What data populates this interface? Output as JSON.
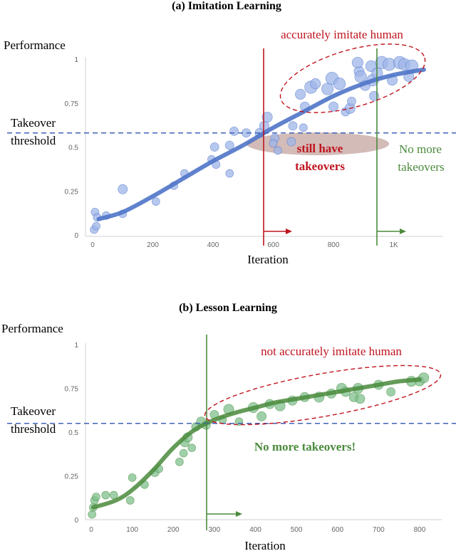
{
  "colors": {
    "blue": "#4f74c8",
    "blue_fill": "#9fb6e8",
    "blue_dash": "#3f62b6",
    "red": "#c0141e",
    "green": "#4a8a3c",
    "green_dark": "#3d7a31",
    "green_fill": "#7fc08e",
    "axis": "#d0d0d0",
    "tick": "#666666",
    "shade": "#c4a4a0"
  },
  "chart_data": [
    {
      "type": "scatter",
      "title": "(a) Imitation Learning",
      "ylabel": "Performance",
      "xlabel": "Iteration",
      "xlim": [
        0,
        1150
      ],
      "ylim": [
        0,
        1
      ],
      "x_ticks": [
        {
          "value": 0,
          "label": "0"
        },
        {
          "value": 200,
          "label": "200"
        },
        {
          "value": 400,
          "label": "400"
        },
        {
          "value": 600,
          "label": "600"
        },
        {
          "value": 800,
          "label": "800"
        },
        {
          "value": 1000,
          "label": "1K"
        }
      ],
      "y_ticks": [
        {
          "value": 0,
          "label": "0"
        },
        {
          "value": 0.25,
          "label": "0.25"
        },
        {
          "value": 0.5,
          "label": "0.5"
        },
        {
          "value": 0.75,
          "label": "0.75"
        },
        {
          "value": 1,
          "label": "1"
        }
      ],
      "threshold": {
        "value": 0.58,
        "label_line1": "Takeover",
        "label_line2": "threshold"
      },
      "vlines": [
        {
          "x": 555,
          "color": "red"
        },
        {
          "x": 925,
          "color": "green"
        }
      ],
      "annotations": {
        "top": "accurately imitate human",
        "middle_line1": "still have",
        "middle_line2": "takeovers",
        "right_line1": "No more",
        "right_line2": "takeovers"
      },
      "trend": {
        "x": [
          20,
          100,
          200,
          300,
          400,
          500,
          600,
          700,
          800,
          900,
          1000,
          1100
        ],
        "y": [
          0.09,
          0.13,
          0.22,
          0.32,
          0.42,
          0.51,
          0.61,
          0.7,
          0.79,
          0.86,
          0.91,
          0.94
        ]
      },
      "points": [
        {
          "x": 5,
          "y": 0.03,
          "s": 1
        },
        {
          "x": 12,
          "y": 0.05,
          "s": 1
        },
        {
          "x": 8,
          "y": 0.13,
          "s": 1
        },
        {
          "x": 15,
          "y": 0.1,
          "s": 1
        },
        {
          "x": 45,
          "y": 0.11,
          "s": 1
        },
        {
          "x": 100,
          "y": 0.12,
          "s": 1
        },
        {
          "x": 100,
          "y": 0.26,
          "s": 1.2
        },
        {
          "x": 210,
          "y": 0.19,
          "s": 1
        },
        {
          "x": 270,
          "y": 0.28,
          "s": 1
        },
        {
          "x": 305,
          "y": 0.35,
          "s": 1
        },
        {
          "x": 405,
          "y": 0.5,
          "s": 1.1
        },
        {
          "x": 395,
          "y": 0.43,
          "s": 1
        },
        {
          "x": 410,
          "y": 0.4,
          "s": 1
        },
        {
          "x": 455,
          "y": 0.35,
          "s": 1
        },
        {
          "x": 455,
          "y": 0.51,
          "s": 1.1
        },
        {
          "x": 470,
          "y": 0.59,
          "s": 1.1
        },
        {
          "x": 510,
          "y": 0.58,
          "s": 1.1
        },
        {
          "x": 555,
          "y": 0.58,
          "s": 1.2
        },
        {
          "x": 570,
          "y": 0.62,
          "s": 1.2
        },
        {
          "x": 580,
          "y": 0.67,
          "s": 1.3
        },
        {
          "x": 605,
          "y": 0.55,
          "s": 1.1
        },
        {
          "x": 600,
          "y": 0.52,
          "s": 1
        },
        {
          "x": 615,
          "y": 0.48,
          "s": 1
        },
        {
          "x": 660,
          "y": 0.53,
          "s": 1.1
        },
        {
          "x": 665,
          "y": 0.62,
          "s": 1.1
        },
        {
          "x": 700,
          "y": 0.61,
          "s": 1
        },
        {
          "x": 705,
          "y": 0.73,
          "s": 1.2
        },
        {
          "x": 690,
          "y": 0.8,
          "s": 1.3
        },
        {
          "x": 725,
          "y": 0.84,
          "s": 1.6
        },
        {
          "x": 740,
          "y": 0.86,
          "s": 1.3
        },
        {
          "x": 780,
          "y": 0.83,
          "s": 1.5
        },
        {
          "x": 795,
          "y": 0.89,
          "s": 1.6
        },
        {
          "x": 820,
          "y": 0.86,
          "s": 1.5
        },
        {
          "x": 800,
          "y": 0.73,
          "s": 1.2
        },
        {
          "x": 840,
          "y": 0.7,
          "s": 1.1
        },
        {
          "x": 855,
          "y": 0.72,
          "s": 1.3
        },
        {
          "x": 885,
          "y": 0.93,
          "s": 1.3
        },
        {
          "x": 890,
          "y": 0.9,
          "s": 1.5
        },
        {
          "x": 880,
          "y": 0.98,
          "s": 1.4
        },
        {
          "x": 905,
          "y": 0.85,
          "s": 1.3
        },
        {
          "x": 925,
          "y": 0.96,
          "s": 1.4
        },
        {
          "x": 930,
          "y": 0.88,
          "s": 1.5
        },
        {
          "x": 945,
          "y": 0.92,
          "s": 1.4
        },
        {
          "x": 960,
          "y": 0.98,
          "s": 1.6
        },
        {
          "x": 985,
          "y": 0.97,
          "s": 1.6
        },
        {
          "x": 995,
          "y": 0.88,
          "s": 1.3
        },
        {
          "x": 1020,
          "y": 0.98,
          "s": 1.6
        },
        {
          "x": 1035,
          "y": 0.97,
          "s": 1.5
        },
        {
          "x": 1050,
          "y": 0.9,
          "s": 1.3
        },
        {
          "x": 1060,
          "y": 0.96,
          "s": 1.6
        },
        {
          "x": 935,
          "y": 0.79,
          "s": 1.2
        },
        {
          "x": 860,
          "y": 0.76,
          "s": 1.1
        }
      ]
    },
    {
      "type": "scatter",
      "title": "(b) Lesson Learning",
      "ylabel": "Performance",
      "xlabel": "Iteration",
      "xlim": [
        0,
        840
      ],
      "ylim": [
        0,
        1
      ],
      "x_ticks": [
        {
          "value": 0,
          "label": "0"
        },
        {
          "value": 100,
          "label": "100"
        },
        {
          "value": 200,
          "label": "200"
        },
        {
          "value": 300,
          "label": "300"
        },
        {
          "value": 400,
          "label": "400"
        },
        {
          "value": 500,
          "label": "500"
        },
        {
          "value": 600,
          "label": "600"
        },
        {
          "value": 700,
          "label": "700"
        },
        {
          "value": 800,
          "label": "800"
        }
      ],
      "y_ticks": [
        {
          "value": 0,
          "label": "0"
        },
        {
          "value": 0.25,
          "label": "0.25"
        },
        {
          "value": 0.5,
          "label": "0.5"
        },
        {
          "value": 0.75,
          "label": "0.75"
        },
        {
          "value": 1,
          "label": "1"
        }
      ],
      "threshold": {
        "value": 0.55,
        "label_line1": "Takeover",
        "label_line2": "threshold"
      },
      "vlines": [
        {
          "x": 298,
          "color": "green"
        }
      ],
      "annotations": {
        "top": "not accurately imitate human",
        "middle": "No more takeovers!"
      },
      "trend": {
        "x": [
          5,
          60,
          100,
          150,
          200,
          250,
          300,
          350,
          400,
          450,
          500,
          550,
          600,
          650,
          700,
          750,
          800
        ],
        "y": [
          0.07,
          0.11,
          0.17,
          0.28,
          0.41,
          0.51,
          0.57,
          0.61,
          0.64,
          0.67,
          0.69,
          0.71,
          0.73,
          0.75,
          0.77,
          0.79,
          0.8
        ]
      },
      "points": [
        {
          "x": 2,
          "y": 0.03,
          "s": 1
        },
        {
          "x": 5,
          "y": 0.07,
          "s": 1
        },
        {
          "x": 8,
          "y": 0.11,
          "s": 1
        },
        {
          "x": 12,
          "y": 0.13,
          "s": 1
        },
        {
          "x": 35,
          "y": 0.14,
          "s": 1
        },
        {
          "x": 55,
          "y": 0.14,
          "s": 1
        },
        {
          "x": 95,
          "y": 0.11,
          "s": 1
        },
        {
          "x": 100,
          "y": 0.24,
          "s": 1
        },
        {
          "x": 130,
          "y": 0.2,
          "s": 1
        },
        {
          "x": 155,
          "y": 0.27,
          "s": 1.1
        },
        {
          "x": 165,
          "y": 0.29,
          "s": 1
        },
        {
          "x": 215,
          "y": 0.33,
          "s": 1
        },
        {
          "x": 225,
          "y": 0.38,
          "s": 1
        },
        {
          "x": 228,
          "y": 0.44,
          "s": 1.1
        },
        {
          "x": 235,
          "y": 0.47,
          "s": 1.2
        },
        {
          "x": 245,
          "y": 0.41,
          "s": 1
        },
        {
          "x": 255,
          "y": 0.53,
          "s": 1.1
        },
        {
          "x": 268,
          "y": 0.56,
          "s": 1.2
        },
        {
          "x": 280,
          "y": 0.54,
          "s": 1.1
        },
        {
          "x": 300,
          "y": 0.6,
          "s": 1.1
        },
        {
          "x": 320,
          "y": 0.57,
          "s": 1
        },
        {
          "x": 335,
          "y": 0.63,
          "s": 1.3
        },
        {
          "x": 360,
          "y": 0.56,
          "s": 1
        },
        {
          "x": 395,
          "y": 0.64,
          "s": 1.3
        },
        {
          "x": 415,
          "y": 0.59,
          "s": 1.2
        },
        {
          "x": 435,
          "y": 0.66,
          "s": 1.2
        },
        {
          "x": 460,
          "y": 0.65,
          "s": 1.3
        },
        {
          "x": 490,
          "y": 0.68,
          "s": 1.2
        },
        {
          "x": 520,
          "y": 0.7,
          "s": 1.2
        },
        {
          "x": 555,
          "y": 0.7,
          "s": 1.3
        },
        {
          "x": 585,
          "y": 0.72,
          "s": 1.2
        },
        {
          "x": 610,
          "y": 0.75,
          "s": 1.3
        },
        {
          "x": 620,
          "y": 0.73,
          "s": 1.2
        },
        {
          "x": 640,
          "y": 0.7,
          "s": 1.2
        },
        {
          "x": 650,
          "y": 0.75,
          "s": 1.3
        },
        {
          "x": 655,
          "y": 0.69,
          "s": 1.2
        },
        {
          "x": 700,
          "y": 0.77,
          "s": 1.2
        },
        {
          "x": 730,
          "y": 0.73,
          "s": 1.1
        },
        {
          "x": 780,
          "y": 0.79,
          "s": 1.3
        },
        {
          "x": 800,
          "y": 0.79,
          "s": 1.2
        },
        {
          "x": 810,
          "y": 0.81,
          "s": 1.3
        }
      ]
    }
  ]
}
